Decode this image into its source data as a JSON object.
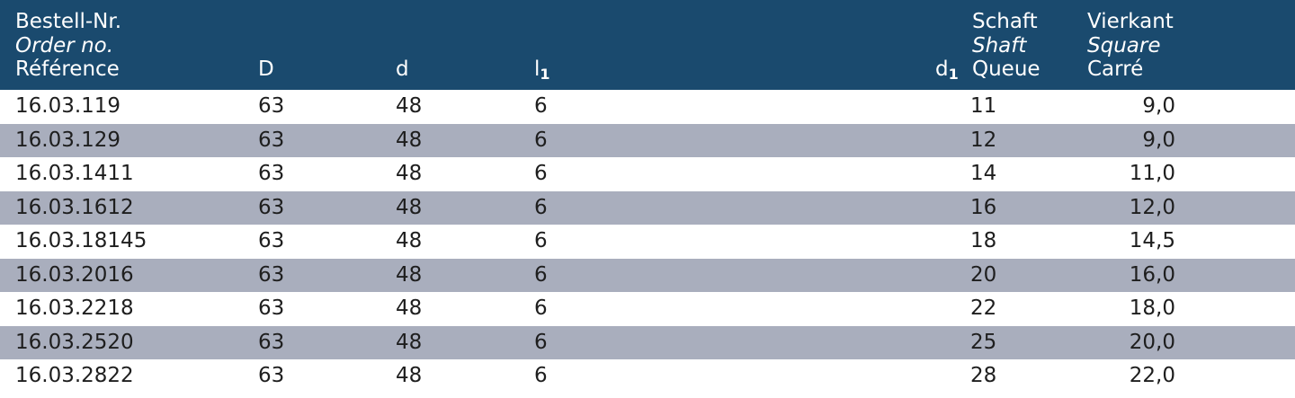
{
  "header": {
    "order": {
      "de": "Bestell-Nr.",
      "en": "Order no.",
      "fr": "Référence"
    },
    "D": "D",
    "d": "d",
    "l1": {
      "base": "l",
      "sub": "1"
    },
    "d1": {
      "base": "d",
      "sub": "1"
    },
    "shaft": {
      "de": "Schaft",
      "en": "Shaft",
      "fr": "Queue"
    },
    "square": {
      "de": "Vierkant",
      "en": "Square",
      "fr": "Carré"
    }
  },
  "rows": [
    {
      "order": "16.03.119",
      "D": "63",
      "d": "48",
      "l1": "6",
      "shaft": "11",
      "square": "9,0"
    },
    {
      "order": "16.03.129",
      "D": "63",
      "d": "48",
      "l1": "6",
      "shaft": "12",
      "square": "9,0"
    },
    {
      "order": "16.03.1411",
      "D": "63",
      "d": "48",
      "l1": "6",
      "shaft": "14",
      "square": "11,0"
    },
    {
      "order": "16.03.1612",
      "D": "63",
      "d": "48",
      "l1": "6",
      "shaft": "16",
      "square": "12,0"
    },
    {
      "order": "16.03.18145",
      "D": "63",
      "d": "48",
      "l1": "6",
      "shaft": "18",
      "square": "14,5"
    },
    {
      "order": "16.03.2016",
      "D": "63",
      "d": "48",
      "l1": "6",
      "shaft": "20",
      "square": "16,0"
    },
    {
      "order": "16.03.2218",
      "D": "63",
      "d": "48",
      "l1": "6",
      "shaft": "22",
      "square": "18,0"
    },
    {
      "order": "16.03.2520",
      "D": "63",
      "d": "48",
      "l1": "6",
      "shaft": "25",
      "square": "20,0"
    },
    {
      "order": "16.03.2822",
      "D": "63",
      "d": "48",
      "l1": "6",
      "shaft": "28",
      "square": "22,0"
    }
  ],
  "colors": {
    "header_bg": "#1a4a6e",
    "alt_row_bg": "#a9aebd",
    "text": "#1e1e1e"
  }
}
